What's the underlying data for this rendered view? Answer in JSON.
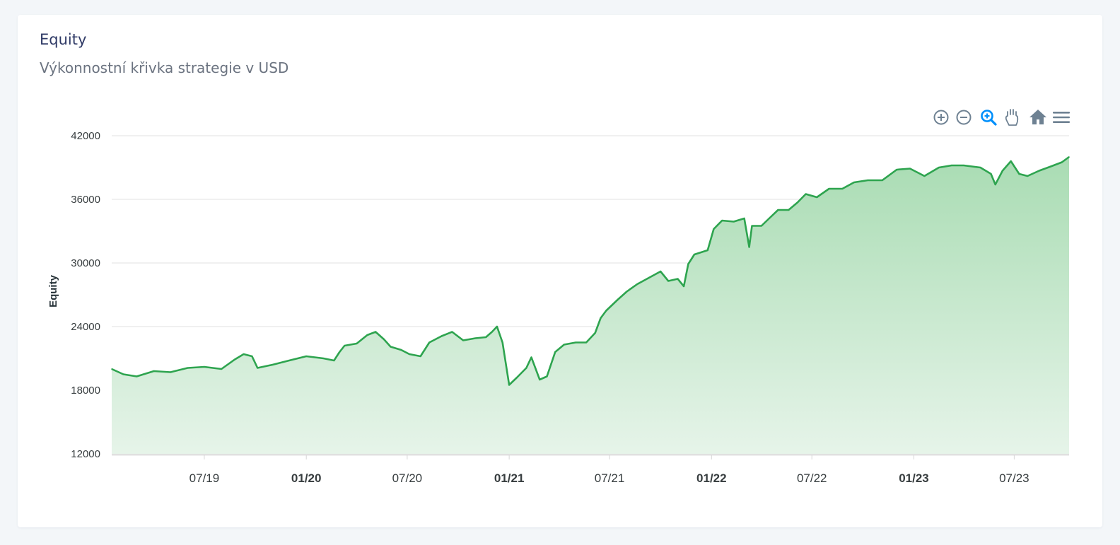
{
  "card": {
    "title": "Equity",
    "subtitle": "Výkonnostní křivka strategie v USD"
  },
  "toolbar": {
    "icons": [
      "zoom-in-icon",
      "zoom-out-icon",
      "selection-zoom-icon",
      "pan-hand-icon",
      "reset-home-icon",
      "menu-icon"
    ],
    "active": "selection-zoom-icon",
    "color": "#6e8192",
    "active_color": "#008ffb"
  },
  "colors": {
    "line": "#2ea44f",
    "fill_top": "#a9dcb3",
    "fill_bottom": "#e6f4e9",
    "grid": "#e0e0e0"
  },
  "chart_data": {
    "type": "area",
    "title": "",
    "xlabel": "",
    "ylabel": "Equity",
    "ylim": [
      12000,
      42000
    ],
    "yticks": [
      "42000",
      "36000",
      "30000",
      "24000",
      "18000",
      "12000"
    ],
    "xlim": [
      "2019-01-15",
      "2023-10-08"
    ],
    "xticks": [
      {
        "date": "2019-07-01",
        "label": "07/19",
        "bold": false
      },
      {
        "date": "2020-01-01",
        "label": "01/20",
        "bold": true
      },
      {
        "date": "2020-07-01",
        "label": "07/20",
        "bold": false
      },
      {
        "date": "2021-01-01",
        "label": "01/21",
        "bold": true
      },
      {
        "date": "2021-07-01",
        "label": "07/21",
        "bold": false
      },
      {
        "date": "2022-01-01",
        "label": "01/22",
        "bold": true
      },
      {
        "date": "2022-07-01",
        "label": "07/22",
        "bold": false
      },
      {
        "date": "2023-01-01",
        "label": "01/23",
        "bold": true
      },
      {
        "date": "2023-07-01",
        "label": "07/23",
        "bold": false
      }
    ],
    "grid": true,
    "series": [
      {
        "points": [
          [
            "2019-01-15",
            20000
          ],
          [
            "2019-02-05",
            19500
          ],
          [
            "2019-03-01",
            19300
          ],
          [
            "2019-04-01",
            19800
          ],
          [
            "2019-05-01",
            19700
          ],
          [
            "2019-06-01",
            20100
          ],
          [
            "2019-07-01",
            20200
          ],
          [
            "2019-08-01",
            20000
          ],
          [
            "2019-08-25",
            20900
          ],
          [
            "2019-09-10",
            21400
          ],
          [
            "2019-09-25",
            21200
          ],
          [
            "2019-10-05",
            20100
          ],
          [
            "2019-11-01",
            20400
          ],
          [
            "2019-12-01",
            20800
          ],
          [
            "2020-01-01",
            21200
          ],
          [
            "2020-02-01",
            21000
          ],
          [
            "2020-02-20",
            20800
          ],
          [
            "2020-03-01",
            21600
          ],
          [
            "2020-03-10",
            22200
          ],
          [
            "2020-04-01",
            22400
          ],
          [
            "2020-04-20",
            23200
          ],
          [
            "2020-05-05",
            23500
          ],
          [
            "2020-05-20",
            22800
          ],
          [
            "2020-06-01",
            22100
          ],
          [
            "2020-06-20",
            21800
          ],
          [
            "2020-07-05",
            21400
          ],
          [
            "2020-07-25",
            21200
          ],
          [
            "2020-08-10",
            22500
          ],
          [
            "2020-09-01",
            23100
          ],
          [
            "2020-09-20",
            23500
          ],
          [
            "2020-10-10",
            22700
          ],
          [
            "2020-11-01",
            22900
          ],
          [
            "2020-11-20",
            23000
          ],
          [
            "2020-12-01",
            23500
          ],
          [
            "2020-12-10",
            24000
          ],
          [
            "2020-12-20",
            22500
          ],
          [
            "2021-01-01",
            18500
          ],
          [
            "2021-01-15",
            19200
          ],
          [
            "2021-02-01",
            20100
          ],
          [
            "2021-02-10",
            21100
          ],
          [
            "2021-02-25",
            19000
          ],
          [
            "2021-03-10",
            19300
          ],
          [
            "2021-03-25",
            21600
          ],
          [
            "2021-04-10",
            22300
          ],
          [
            "2021-05-01",
            22500
          ],
          [
            "2021-05-20",
            22500
          ],
          [
            "2021-06-05",
            23400
          ],
          [
            "2021-06-15",
            24800
          ],
          [
            "2021-06-25",
            25500
          ],
          [
            "2021-07-15",
            26500
          ],
          [
            "2021-08-01",
            27300
          ],
          [
            "2021-08-20",
            28000
          ],
          [
            "2021-09-10",
            28600
          ],
          [
            "2021-10-01",
            29200
          ],
          [
            "2021-10-15",
            28300
          ],
          [
            "2021-11-01",
            28500
          ],
          [
            "2021-11-12",
            27800
          ],
          [
            "2021-11-20",
            29900
          ],
          [
            "2021-12-01",
            30800
          ],
          [
            "2021-12-25",
            31200
          ],
          [
            "2022-01-05",
            33200
          ],
          [
            "2022-01-20",
            34000
          ],
          [
            "2022-02-10",
            33900
          ],
          [
            "2022-03-01",
            34200
          ],
          [
            "2022-03-10",
            31500
          ],
          [
            "2022-03-15",
            33500
          ],
          [
            "2022-04-01",
            33500
          ],
          [
            "2022-04-15",
            34200
          ],
          [
            "2022-05-01",
            35000
          ],
          [
            "2022-05-20",
            35000
          ],
          [
            "2022-06-05",
            35700
          ],
          [
            "2022-06-20",
            36500
          ],
          [
            "2022-07-10",
            36200
          ],
          [
            "2022-08-01",
            37000
          ],
          [
            "2022-08-25",
            37000
          ],
          [
            "2022-09-15",
            37600
          ],
          [
            "2022-10-10",
            37800
          ],
          [
            "2022-11-05",
            37800
          ],
          [
            "2022-12-01",
            38800
          ],
          [
            "2022-12-25",
            38900
          ],
          [
            "2023-01-20",
            38200
          ],
          [
            "2023-02-15",
            39000
          ],
          [
            "2023-03-10",
            39200
          ],
          [
            "2023-04-01",
            39200
          ],
          [
            "2023-05-01",
            39000
          ],
          [
            "2023-05-20",
            38400
          ],
          [
            "2023-05-28",
            37400
          ],
          [
            "2023-06-10",
            38700
          ],
          [
            "2023-06-25",
            39600
          ],
          [
            "2023-07-10",
            38400
          ],
          [
            "2023-07-25",
            38200
          ],
          [
            "2023-08-15",
            38700
          ],
          [
            "2023-09-05",
            39100
          ],
          [
            "2023-09-25",
            39500
          ],
          [
            "2023-10-08",
            40000
          ]
        ]
      }
    ]
  }
}
